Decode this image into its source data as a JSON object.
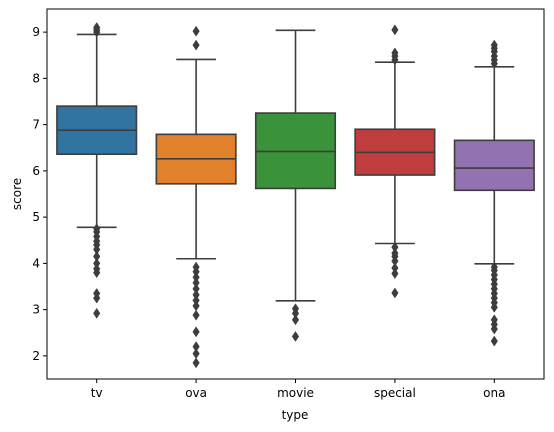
{
  "chart_data": {
    "type": "box",
    "xlabel": "type",
    "ylabel": "score",
    "ylim": [
      1.5,
      9.5
    ],
    "yticks": [
      2,
      3,
      4,
      5,
      6,
      7,
      8,
      9
    ],
    "grid": false,
    "legend": "none",
    "edge_color": "#3d3d3d",
    "categories": [
      "tv",
      "ova",
      "movie",
      "special",
      "ona"
    ],
    "boxes": [
      {
        "category": "tv",
        "color": "#3274a1",
        "whisker_low": 4.78,
        "q1": 6.36,
        "median": 6.88,
        "q3": 7.4,
        "whisker_high": 8.95,
        "outliers": [
          2.92,
          3.25,
          3.35,
          3.8,
          3.88,
          4.0,
          4.15,
          4.3,
          4.4,
          4.48,
          4.58,
          4.68,
          4.75,
          9.0,
          9.05,
          9.1
        ]
      },
      {
        "category": "ova",
        "color": "#e1812c",
        "whisker_low": 4.1,
        "q1": 5.72,
        "median": 6.26,
        "q3": 6.79,
        "whisker_high": 8.41,
        "outliers": [
          1.85,
          2.05,
          2.2,
          2.52,
          2.88,
          3.08,
          3.2,
          3.32,
          3.45,
          3.58,
          3.7,
          3.82,
          3.92,
          8.72,
          9.02
        ]
      },
      {
        "category": "movie",
        "color": "#3a923a",
        "whisker_low": 3.19,
        "q1": 5.62,
        "median": 6.42,
        "q3": 7.25,
        "whisker_high": 9.04,
        "outliers": [
          2.42,
          2.78,
          2.92,
          3.02
        ]
      },
      {
        "category": "special",
        "color": "#c03d3e",
        "whisker_low": 4.43,
        "q1": 5.91,
        "median": 6.4,
        "q3": 6.9,
        "whisker_high": 8.35,
        "outliers": [
          3.36,
          3.78,
          3.9,
          4.05,
          4.15,
          4.22,
          4.35,
          8.4,
          8.48,
          8.55,
          9.05
        ]
      },
      {
        "category": "ona",
        "color": "#9372b2",
        "whisker_low": 3.99,
        "q1": 5.58,
        "median": 6.06,
        "q3": 6.66,
        "whisker_high": 8.25,
        "outliers": [
          2.32,
          2.58,
          2.68,
          2.78,
          3.05,
          3.15,
          3.25,
          3.35,
          3.45,
          3.55,
          3.65,
          3.75,
          3.85,
          3.92,
          8.32,
          8.4,
          8.48,
          8.58,
          8.65,
          8.72
        ]
      }
    ]
  }
}
